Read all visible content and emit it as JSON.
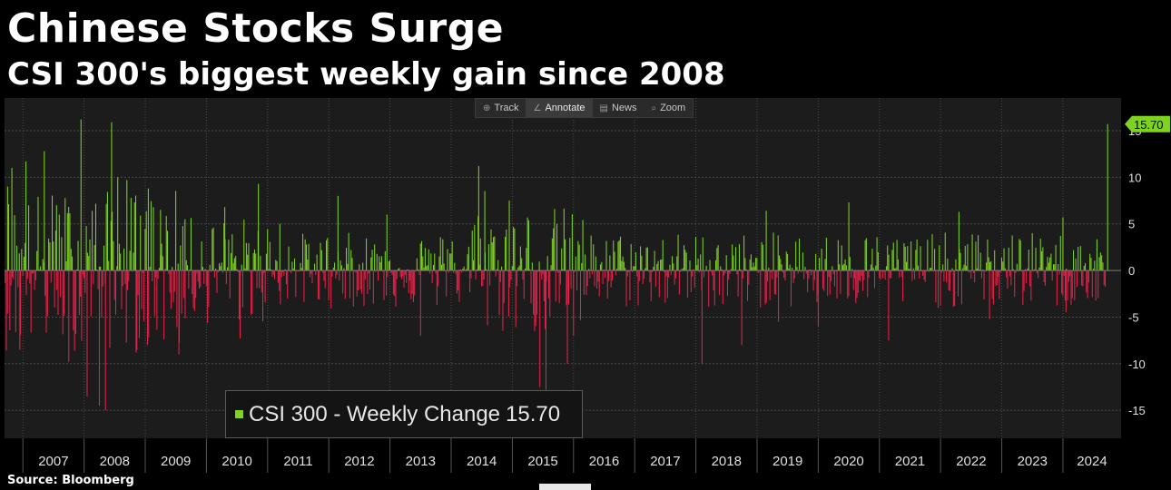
{
  "header": {
    "title": "Chinese Stocks Surge",
    "subtitle": "CSI 300's biggest weekly gain since 2008"
  },
  "toolbar": {
    "items": [
      {
        "label": "Track",
        "icon": "crosshair-icon",
        "active": false
      },
      {
        "label": "Annotate",
        "icon": "pencil-icon",
        "active": true
      },
      {
        "label": "News",
        "icon": "news-icon",
        "active": false
      },
      {
        "label": "Zoom",
        "icon": "magnifier-icon",
        "active": false
      }
    ]
  },
  "legend": {
    "label": "CSI 300 - Weekly Change",
    "value": "15.70"
  },
  "source": "Source: Bloomberg",
  "chart_data": {
    "type": "bar",
    "title": "Chinese Stocks Surge",
    "subtitle": "CSI 300's biggest weekly gain since 2008",
    "series_name": "CSI 300 - Weekly Change",
    "last_value": 15.7,
    "last_value_label": "15.70",
    "ylim": [
      -18,
      18.5
    ],
    "yticks": [
      -15,
      -10,
      -5,
      0,
      5,
      10,
      15
    ],
    "ytick_labels": [
      "-15",
      "-10",
      "-5",
      "0",
      "5",
      "10",
      "15"
    ],
    "x_range": [
      2006.7,
      2024.95
    ],
    "years": [
      "2007",
      "2008",
      "2009",
      "2010",
      "2011",
      "2012",
      "2013",
      "2014",
      "2015",
      "2016",
      "2017",
      "2018",
      "2019",
      "2020",
      "2021",
      "2022",
      "2023",
      "2024"
    ],
    "colors": {
      "positive": "#7ed321",
      "negative": "#e8214b",
      "grid": "#4a4a4a",
      "background": "#1c1c1c",
      "label_bg": "#7ed321"
    },
    "notable_weeks": [
      {
        "x": 2006.75,
        "value": 9.0
      },
      {
        "x": 2006.82,
        "value": 11.0
      },
      {
        "x": 2006.95,
        "value": -8.5
      },
      {
        "x": 2007.05,
        "value": 11.7
      },
      {
        "x": 2007.35,
        "value": 12.8
      },
      {
        "x": 2007.55,
        "value": 7.0
      },
      {
        "x": 2007.75,
        "value": -9.8
      },
      {
        "x": 2007.95,
        "value": 16.2
      },
      {
        "x": 2008.05,
        "value": -13.5
      },
      {
        "x": 2008.25,
        "value": -14.5
      },
      {
        "x": 2008.45,
        "value": 15.9
      },
      {
        "x": 2008.55,
        "value": 10.0
      },
      {
        "x": 2008.7,
        "value": 9.7
      },
      {
        "x": 2008.35,
        "value": -15.0
      },
      {
        "x": 2008.85,
        "value": -8.8
      },
      {
        "x": 2009.05,
        "value": 8.8
      },
      {
        "x": 2009.25,
        "value": 6.5
      },
      {
        "x": 2009.55,
        "value": -9.0
      },
      {
        "x": 2009.65,
        "value": 5.5
      },
      {
        "x": 2010.3,
        "value": 6.8
      },
      {
        "x": 2010.55,
        "value": -7.3
      },
      {
        "x": 2010.85,
        "value": 9.3
      },
      {
        "x": 2011.2,
        "value": 5.0
      },
      {
        "x": 2012.15,
        "value": 8.0
      },
      {
        "x": 2012.95,
        "value": 6.0
      },
      {
        "x": 2013.5,
        "value": -7.0
      },
      {
        "x": 2014.45,
        "value": 11.2
      },
      {
        "x": 2014.55,
        "value": 8.5
      },
      {
        "x": 2014.95,
        "value": 7.5
      },
      {
        "x": 2015.45,
        "value": -12.5
      },
      {
        "x": 2015.55,
        "value": -12.8
      },
      {
        "x": 2015.9,
        "value": -10.0
      },
      {
        "x": 2016.0,
        "value": -7.0
      },
      {
        "x": 2018.1,
        "value": -10.0
      },
      {
        "x": 2018.75,
        "value": -8.0
      },
      {
        "x": 2019.15,
        "value": 6.4
      },
      {
        "x": 2019.35,
        "value": -5.5
      },
      {
        "x": 2020.0,
        "value": -6.0
      },
      {
        "x": 2020.5,
        "value": 7.3
      },
      {
        "x": 2021.15,
        "value": -7.5
      },
      {
        "x": 2022.3,
        "value": 6.3
      },
      {
        "x": 2022.8,
        "value": -5.2
      },
      {
        "x": 2024.0,
        "value": 5.7
      },
      {
        "x": 2024.05,
        "value": -4.5
      },
      {
        "x": 2024.73,
        "value": 15.7
      }
    ]
  }
}
